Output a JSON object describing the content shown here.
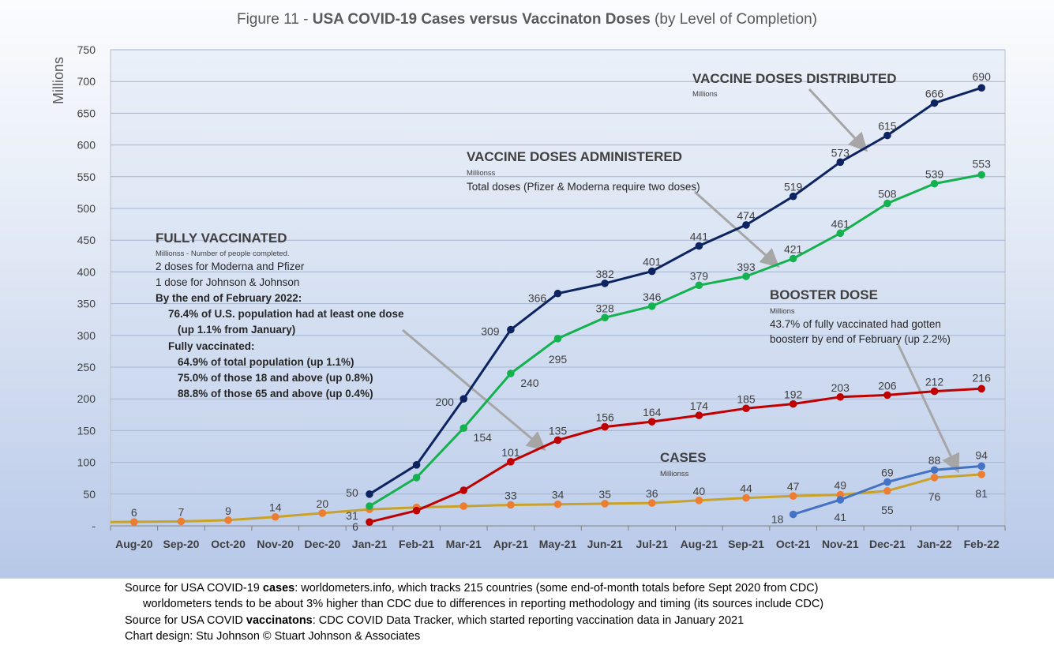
{
  "title": {
    "prefix": "Figure 11 - ",
    "main": "USA COVID-19 Cases versus Vaccinaton Doses",
    "suffix": " (by Level of Completion)"
  },
  "colors": {
    "distributed": "#0d2461",
    "administered": "#14b24e",
    "booster": "#c00000",
    "fully": "#4472c4",
    "cases": "#c9a227",
    "cases_marker": "#ed7d31"
  },
  "chart_data": {
    "type": "line",
    "title": "Figure 11 - USA COVID-19 Cases versus Vaccinaton Doses (by Level of Completion)",
    "ylabel": "Millions",
    "ylim": [
      0,
      750
    ],
    "yticks": [
      "-",
      "50",
      "100",
      "150",
      "200",
      "250",
      "300",
      "350",
      "400",
      "450",
      "500",
      "550",
      "600",
      "650",
      "700",
      "750"
    ],
    "categories": [
      "Aug-20",
      "Sep-20",
      "Oct-20",
      "Nov-20",
      "Dec-20",
      "Jan-21",
      "Feb-21",
      "Mar-21",
      "Apr-21",
      "May-21",
      "Jun-21",
      "Jul-21",
      "Aug-21",
      "Sep-21",
      "Oct-21",
      "Nov-21",
      "Dec-21",
      "Jan-22",
      "Feb-22"
    ],
    "grid": true,
    "series": [
      {
        "key": "distributed",
        "values": [
          null,
          null,
          null,
          null,
          null,
          50,
          96,
          200,
          309,
          366,
          382,
          401,
          441,
          474,
          519,
          573,
          615,
          666,
          690
        ],
        "labels": [
          null,
          null,
          null,
          null,
          null,
          "50",
          null,
          "200",
          "309",
          "366",
          "382",
          "401",
          "441",
          "474",
          "519",
          "573",
          "615",
          "666",
          "690"
        ]
      },
      {
        "key": "administered",
        "values": [
          null,
          null,
          null,
          null,
          null,
          31,
          76,
          154,
          240,
          295,
          328,
          346,
          379,
          393,
          421,
          461,
          508,
          539,
          553
        ],
        "labels": [
          null,
          null,
          null,
          null,
          null,
          "31",
          null,
          "154",
          "240",
          "295",
          "328",
          "346",
          "379",
          "393",
          "421",
          "461",
          "508",
          "539",
          "553"
        ]
      },
      {
        "key": "booster",
        "values": [
          null,
          null,
          null,
          null,
          null,
          6,
          24,
          56,
          101,
          135,
          156,
          164,
          174,
          185,
          192,
          203,
          206,
          212,
          216
        ],
        "labels": [
          null,
          null,
          null,
          null,
          null,
          "6",
          null,
          null,
          "101",
          "135",
          "156",
          "164",
          "174",
          "185",
          "192",
          "203",
          "206",
          "212",
          "216"
        ]
      },
      {
        "key": "fully",
        "values": [
          null,
          null,
          null,
          null,
          null,
          null,
          null,
          null,
          null,
          null,
          null,
          null,
          null,
          null,
          18,
          41,
          69,
          88,
          94
        ],
        "labels": [
          null,
          null,
          null,
          null,
          null,
          null,
          null,
          null,
          null,
          null,
          null,
          null,
          null,
          null,
          "18",
          "41",
          "69",
          "88",
          "94"
        ]
      },
      {
        "key": "cases",
        "values": [
          6,
          7,
          9,
          14,
          20,
          26,
          29,
          31,
          33,
          34,
          35,
          36,
          40,
          44,
          47,
          49,
          55,
          76,
          81
        ],
        "labels": [
          "6",
          "7",
          "9",
          "14",
          "20",
          null,
          null,
          null,
          "33",
          "34",
          "35",
          "36",
          "40",
          "44",
          "47",
          "49",
          "55",
          "76",
          "81"
        ]
      }
    ],
    "annotations": {
      "distributed": {
        "title": "VACCINE DOSES DISTRIBUTED",
        "unit": "Millions"
      },
      "administered": {
        "title": "VACCINE DOSES ADMINISTERED",
        "unit": "Millionss",
        "note": "Total doses (Pfizer & Moderna require two doses)"
      },
      "fully": {
        "title": "FULLY VACCINATED",
        "unit": "Millionss - Number of people completed.",
        "lines": [
          "2 doses for Moderna and Pfizer",
          "1 dose for Johnson & Johnson"
        ],
        "bold_lines": [
          "By the end of February 2022:",
          "76.4% of U.S. population had at least one dose",
          "(up 1.1% from January)",
          "Fully vaccinated:",
          "64.9% of total population (up 1.1%)",
          "75.0% of those 18 and above (up 0.8%)",
          "88.8% of those 65 and above (up 0.4%)"
        ]
      },
      "booster": {
        "title": "BOOSTER DOSE",
        "unit": "Millions",
        "lines": [
          "43.7% of fully vaccinated had gotten",
          "boosterr by end of February (up 2.2%)"
        ]
      },
      "cases": {
        "title": "CASES",
        "unit": "Millionss"
      }
    }
  },
  "sources": {
    "line1_a": "Source for USA COVID-19 ",
    "line1_b": "cases",
    "line1_c": ": worldometers.info, which tracks 215 countries  (some end-of-month totals before Sept 2020 from CDC)",
    "line2": "worldometers tends to be about 3% higher than CDC due to differences in reporting methodology and timing (its sources include CDC)",
    "line3_a": "Source for USA COVID ",
    "line3_b": "vaccinatons",
    "line3_c": ": CDC COVID Data Tracker, which started reporting vaccination data in January 2021",
    "line4": "Chart design: Stu Johnson © Stuart Johnson & Associates"
  }
}
